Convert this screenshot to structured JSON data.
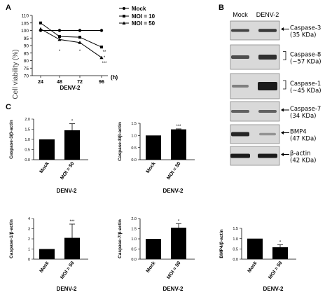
{
  "panels": {
    "a": "A",
    "b": "B",
    "c": "C"
  },
  "panel_a": {
    "ylabel": "Cell viability (%)",
    "xunit": "(h)",
    "xgroup": "DENV-2",
    "sig_labels": [
      "*",
      "*",
      "**",
      "*",
      "***"
    ]
  },
  "panel_b": {
    "lanes": [
      "Mock",
      "DENV-2"
    ],
    "blots": [
      {
        "name": "Caspase-3",
        "size": "(35 KDa)",
        "marker": "arrow"
      },
      {
        "name": "Caspase-8",
        "size": "(~57 KDa)",
        "marker": "bracket"
      },
      {
        "name": "Caspase-1",
        "size": "(~45 KDa)",
        "marker": "bracket"
      },
      {
        "name": "Caspase-7",
        "size": "(34 KDa)",
        "marker": "arrow"
      },
      {
        "name": "BMP4",
        "size": "(47 KDa)",
        "marker": "arrow"
      },
      {
        "name": "β-actin",
        "size": "(42 KDa)",
        "marker": "arrow"
      }
    ]
  },
  "chart_data": [
    {
      "type": "line",
      "panel": "A",
      "ylabel": "Cell viability (%)",
      "xlabel": "(h)",
      "x": [
        24,
        48,
        72,
        96
      ],
      "ylim": [
        70,
        110
      ],
      "yticks": [
        70,
        75,
        80,
        85,
        90,
        95,
        100,
        105,
        110
      ],
      "series": [
        {
          "name": "Mock",
          "values": [
            100,
            100,
            100,
            100
          ],
          "marker": "circle"
        },
        {
          "name": "MOI = 10",
          "values": [
            105,
            96,
            95.5,
            89
          ],
          "marker": "square"
        },
        {
          "name": "MOI = 50",
          "values": [
            101,
            94,
            92,
            82
          ],
          "marker": "triangle"
        }
      ],
      "annotations": [
        {
          "x": 48,
          "text": "*"
        },
        {
          "x": 72,
          "text": "*"
        },
        {
          "x": 96,
          "text": "**"
        },
        {
          "x": 96,
          "text": "*"
        },
        {
          "x": 96,
          "text": "***"
        }
      ],
      "group_label": "DENV-2"
    },
    {
      "type": "bar",
      "panel": "C",
      "ylabel": "Caspase-3/β-actin",
      "categories": [
        "Mock",
        "MOI = 50"
      ],
      "values": [
        1.0,
        1.45
      ],
      "errors": [
        0,
        0.32
      ],
      "sig": [
        "",
        "*"
      ],
      "ylim": [
        0,
        2.0
      ],
      "yticks": [
        0.0,
        0.5,
        1.0,
        1.5,
        2.0
      ],
      "group_label": "DENV-2"
    },
    {
      "type": "bar",
      "panel": "C",
      "ylabel": "Caspase-8/β-actin",
      "categories": [
        "Mock",
        "MOI = 50"
      ],
      "values": [
        1.0,
        1.25
      ],
      "errors": [
        0,
        0.02
      ],
      "sig": [
        "",
        "***"
      ],
      "ylim": [
        0,
        1.5
      ],
      "yticks": [
        0.0,
        0.5,
        1.0,
        1.5
      ],
      "group_label": "DENV-2"
    },
    {
      "type": "bar",
      "panel": "C",
      "ylabel": "Caspase-1/β-actin",
      "categories": [
        "Mock",
        "MOI = 50"
      ],
      "values": [
        1.0,
        2.1
      ],
      "errors": [
        0,
        1.35
      ],
      "sig": [
        "",
        "***"
      ],
      "ylim": [
        0,
        4
      ],
      "yticks": [
        0,
        1,
        2,
        3,
        4
      ],
      "group_label": "DENV-2"
    },
    {
      "type": "bar",
      "panel": "C",
      "ylabel": "Caspase-7/β-actin",
      "categories": [
        "Mock",
        "MOI = 50"
      ],
      "values": [
        1.0,
        1.55
      ],
      "errors": [
        0,
        0.2
      ],
      "sig": [
        "",
        "*"
      ],
      "ylim": [
        0,
        2.0
      ],
      "yticks": [
        0.0,
        0.5,
        1.0,
        1.5,
        2.0
      ],
      "group_label": "DENV-2"
    },
    {
      "type": "bar",
      "panel": "C",
      "ylabel": "BMP4/β-actin",
      "categories": [
        "Mock",
        "MOI = 50"
      ],
      "values": [
        1.0,
        0.58
      ],
      "errors": [
        0,
        0.12
      ],
      "sig": [
        "",
        "*"
      ],
      "ylim": [
        0,
        1.5
      ],
      "yticks": [
        0.0,
        0.5,
        1.0,
        1.5
      ],
      "group_label": "DENV-2"
    }
  ]
}
